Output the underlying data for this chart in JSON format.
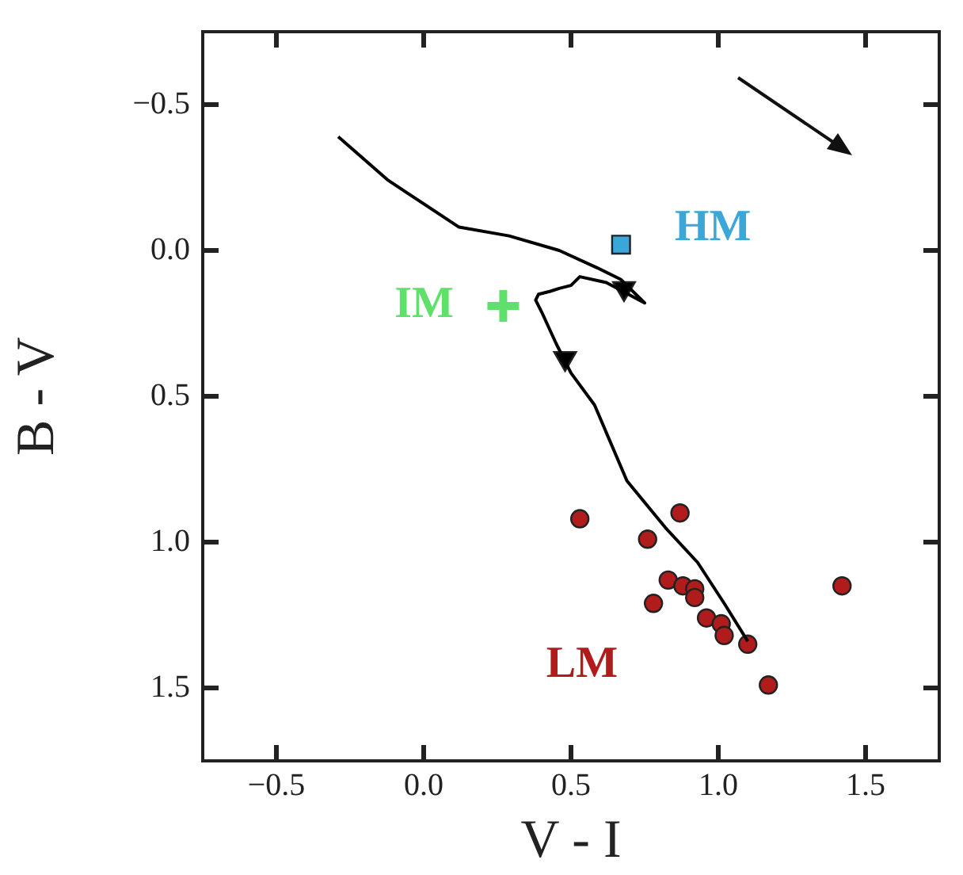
{
  "chart_data": {
    "type": "scatter",
    "xlabel": "V - I",
    "ylabel": "B - V",
    "xlim": [
      -0.75,
      1.75
    ],
    "ylim": [
      1.75,
      -0.75
    ],
    "xticks": [
      {
        "value": -0.5,
        "label": "−0.5"
      },
      {
        "value": 0,
        "label": "0.0"
      },
      {
        "value": 0.5,
        "label": "0.5"
      },
      {
        "value": 1,
        "label": "1.0"
      },
      {
        "value": 1.5,
        "label": "1.5"
      }
    ],
    "yticks": [
      {
        "value": -0.5,
        "label": "−0.5"
      },
      {
        "value": 0,
        "label": "0.0"
      },
      {
        "value": 0.5,
        "label": "0.5"
      },
      {
        "value": 1,
        "label": "1.0"
      },
      {
        "value": 1.5,
        "label": "1.5"
      }
    ],
    "grid": false,
    "legend": false,
    "series": [
      {
        "type": "line",
        "color": "#000000",
        "marker": "none",
        "line_style": "solid",
        "x": [
          -0.29,
          -0.12,
          0.12,
          0.29,
          0.46,
          0.59,
          0.67,
          0.75,
          0.62,
          0.53,
          0.5,
          0.46,
          0.43,
          0.39,
          0.38,
          0.4,
          0.45,
          0.5,
          0.58,
          0.69,
          0.82,
          0.93,
          1.02,
          1.1
        ],
        "values": [
          -0.39,
          -0.24,
          -0.08,
          -0.05,
          0.0,
          0.06,
          0.1,
          0.18,
          0.11,
          0.09,
          0.12,
          0.13,
          0.14,
          0.15,
          0.17,
          0.21,
          0.32,
          0.42,
          0.53,
          0.79,
          0.95,
          1.07,
          1.21,
          1.34
        ]
      },
      {
        "color": "#000000",
        "marker": "triangle",
        "x": [
          0.68,
          0.48
        ],
        "values": [
          0.13,
          0.37
        ]
      },
      {
        "name": "HM",
        "color": "#3ba7d8",
        "marker": "square",
        "x": [
          0.67
        ],
        "values": [
          -0.02
        ]
      },
      {
        "name": "IM",
        "color": "#5ee06a",
        "marker": "cross",
        "x": [
          0.27
        ],
        "values": [
          0.19
        ]
      },
      {
        "name": "LM",
        "color": "#b01c1c",
        "marker": "circle",
        "x": [
          0.53,
          0.87,
          0.76,
          0.83,
          0.88,
          0.92,
          0.92,
          0.78,
          0.96,
          1.01,
          1.02,
          1.1,
          1.17,
          1.42
        ],
        "values": [
          0.92,
          0.9,
          0.99,
          1.13,
          1.15,
          1.16,
          1.19,
          1.21,
          1.26,
          1.28,
          1.32,
          1.35,
          1.49,
          1.15
        ]
      }
    ]
  }
}
